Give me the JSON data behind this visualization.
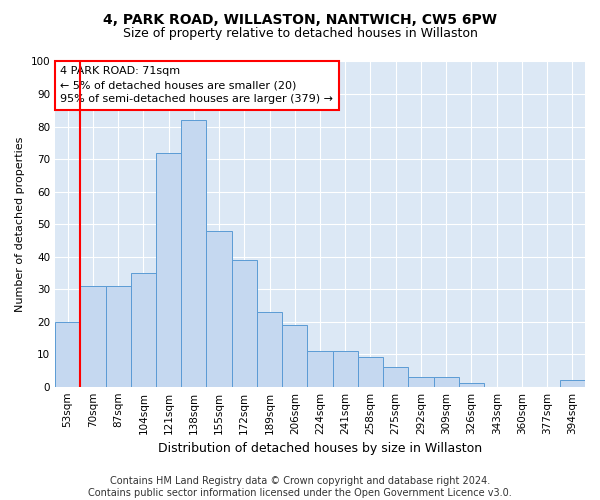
{
  "title_line1": "4, PARK ROAD, WILLASTON, NANTWICH, CW5 6PW",
  "title_line2": "Size of property relative to detached houses in Willaston",
  "xlabel": "Distribution of detached houses by size in Willaston",
  "ylabel": "Number of detached properties",
  "categories": [
    "53sqm",
    "70sqm",
    "87sqm",
    "104sqm",
    "121sqm",
    "138sqm",
    "155sqm",
    "172sqm",
    "189sqm",
    "206sqm",
    "224sqm",
    "241sqm",
    "258sqm",
    "275sqm",
    "292sqm",
    "309sqm",
    "326sqm",
    "343sqm",
    "360sqm",
    "377sqm",
    "394sqm"
  ],
  "values": [
    20,
    31,
    31,
    35,
    72,
    82,
    48,
    39,
    23,
    19,
    11,
    11,
    9,
    6,
    3,
    3,
    1,
    0,
    0,
    0,
    2
  ],
  "bar_color": "#c5d8f0",
  "bar_edge_color": "#5b9bd5",
  "annotation_line1": "4 PARK ROAD: 71sqm",
  "annotation_line2": "← 5% of detached houses are smaller (20)",
  "annotation_line3": "95% of semi-detached houses are larger (379) →",
  "annotation_box_color": "white",
  "annotation_box_edge_color": "red",
  "vline_color": "red",
  "ylim": [
    0,
    100
  ],
  "yticks": [
    0,
    10,
    20,
    30,
    40,
    50,
    60,
    70,
    80,
    90,
    100
  ],
  "background_color": "#dce8f5",
  "grid_color": "#ffffff",
  "footer_text": "Contains HM Land Registry data © Crown copyright and database right 2024.\nContains public sector information licensed under the Open Government Licence v3.0.",
  "title_fontsize": 10,
  "subtitle_fontsize": 9,
  "xlabel_fontsize": 9,
  "ylabel_fontsize": 8,
  "tick_fontsize": 7.5,
  "footer_fontsize": 7,
  "annot_fontsize": 8
}
